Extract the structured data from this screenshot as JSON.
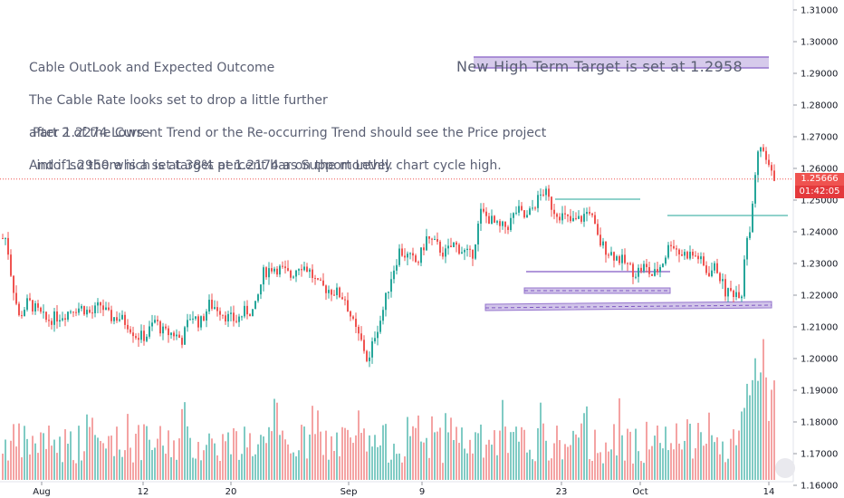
{
  "annotations": {
    "block1": [
      "Cable OutLook and Expected Outcome",
      "The Cable Rate looks set to drop a little further",
      "after 1.2274 Lows -",
      "And if so there is a set target at 1.2174 as Support Level."
    ],
    "block2": [
      "Part 2 of the Current Trend or the Re-occurring Trend should see the Price project",
      " into 1.2950 which is at 38% percent bar on the monthly chart cycle high."
    ],
    "target": "New High Term Target is set at 1.2958"
  },
  "price_tag": {
    "value": "1.25666",
    "countdown": "01:42:05",
    "color": "#ef5350",
    "bg2": "#e4393c"
  },
  "colors": {
    "up": "#26a69a",
    "down": "#ef5350",
    "vol_up": "#80cbc4",
    "vol_down": "#f4a3a3",
    "line": "#4db6ac",
    "band": "#9575cd",
    "band_fill": "#d1c4e9"
  },
  "chart_data": {
    "type": "candlestick",
    "title": "",
    "y_axis": {
      "ticks": [
        "1.31000",
        "1.30000",
        "1.29000",
        "1.28000",
        "1.27000",
        "1.26000",
        "1.25000",
        "1.24000",
        "1.23000",
        "1.22000",
        "1.21000",
        "1.20000",
        "1.19000",
        "1.18000",
        "1.17000",
        "1.16000"
      ],
      "range": [
        1.16,
        1.31
      ]
    },
    "x_axis": {
      "ticks": [
        "Aug",
        "12",
        "20",
        "Sep",
        "9",
        "23",
        "Oct",
        "14"
      ]
    },
    "last_price": 1.25666,
    "price_path": [
      [
        0,
        1.238
      ],
      [
        6,
        1.238
      ],
      [
        12,
        1.225
      ],
      [
        20,
        1.213
      ],
      [
        30,
        1.218
      ],
      [
        40,
        1.215
      ],
      [
        50,
        1.212
      ],
      [
        60,
        1.213
      ],
      [
        70,
        1.214
      ],
      [
        80,
        1.216
      ],
      [
        90,
        1.216
      ],
      [
        100,
        1.214
      ],
      [
        110,
        1.217
      ],
      [
        120,
        1.213
      ],
      [
        130,
        1.213
      ],
      [
        140,
        1.211
      ],
      [
        150,
        1.207
      ],
      [
        160,
        1.207
      ],
      [
        170,
        1.212
      ],
      [
        180,
        1.208
      ],
      [
        190,
        1.208
      ],
      [
        200,
        1.206
      ],
      [
        210,
        1.214
      ],
      [
        220,
        1.211
      ],
      [
        230,
        1.217
      ],
      [
        240,
        1.216
      ],
      [
        250,
        1.213
      ],
      [
        260,
        1.212
      ],
      [
        270,
        1.215
      ],
      [
        280,
        1.215
      ],
      [
        290,
        1.227
      ],
      [
        300,
        1.229
      ],
      [
        310,
        1.228
      ],
      [
        320,
        1.226
      ],
      [
        330,
        1.23
      ],
      [
        340,
        1.228
      ],
      [
        350,
        1.223
      ],
      [
        360,
        1.222
      ],
      [
        370,
        1.221
      ],
      [
        380,
        1.219
      ],
      [
        390,
        1.21
      ],
      [
        400,
        1.204
      ],
      [
        406,
        1.198
      ],
      [
        412,
        1.207
      ],
      [
        420,
        1.213
      ],
      [
        430,
        1.225
      ],
      [
        440,
        1.234
      ],
      [
        450,
        1.232
      ],
      [
        460,
        1.23
      ],
      [
        470,
        1.238
      ],
      [
        480,
        1.236
      ],
      [
        490,
        1.233
      ],
      [
        500,
        1.236
      ],
      [
        510,
        1.234
      ],
      [
        520,
        1.232
      ],
      [
        530,
        1.246
      ],
      [
        540,
        1.244
      ],
      [
        550,
        1.241
      ],
      [
        560,
        1.242
      ],
      [
        570,
        1.247
      ],
      [
        580,
        1.244
      ],
      [
        590,
        1.249
      ],
      [
        600,
        1.253
      ],
      [
        610,
        1.247
      ],
      [
        620,
        1.245
      ],
      [
        630,
        1.243
      ],
      [
        640,
        1.244
      ],
      [
        650,
        1.247
      ],
      [
        660,
        1.237
      ],
      [
        670,
        1.234
      ],
      [
        680,
        1.232
      ],
      [
        690,
        1.23
      ],
      [
        700,
        1.227
      ],
      [
        710,
        1.229
      ],
      [
        720,
        1.226
      ],
      [
        730,
        1.23
      ],
      [
        740,
        1.237
      ],
      [
        750,
        1.233
      ],
      [
        760,
        1.233
      ],
      [
        770,
        1.232
      ],
      [
        780,
        1.227
      ],
      [
        790,
        1.229
      ],
      [
        800,
        1.221
      ],
      [
        810,
        1.221
      ],
      [
        818,
        1.221
      ],
      [
        822,
        1.235
      ],
      [
        826,
        1.24
      ],
      [
        830,
        1.247
      ],
      [
        834,
        1.26
      ],
      [
        838,
        1.268
      ],
      [
        842,
        1.264
      ],
      [
        846,
        1.262
      ],
      [
        850,
        1.258
      ],
      [
        856,
        1.257
      ]
    ]
  }
}
